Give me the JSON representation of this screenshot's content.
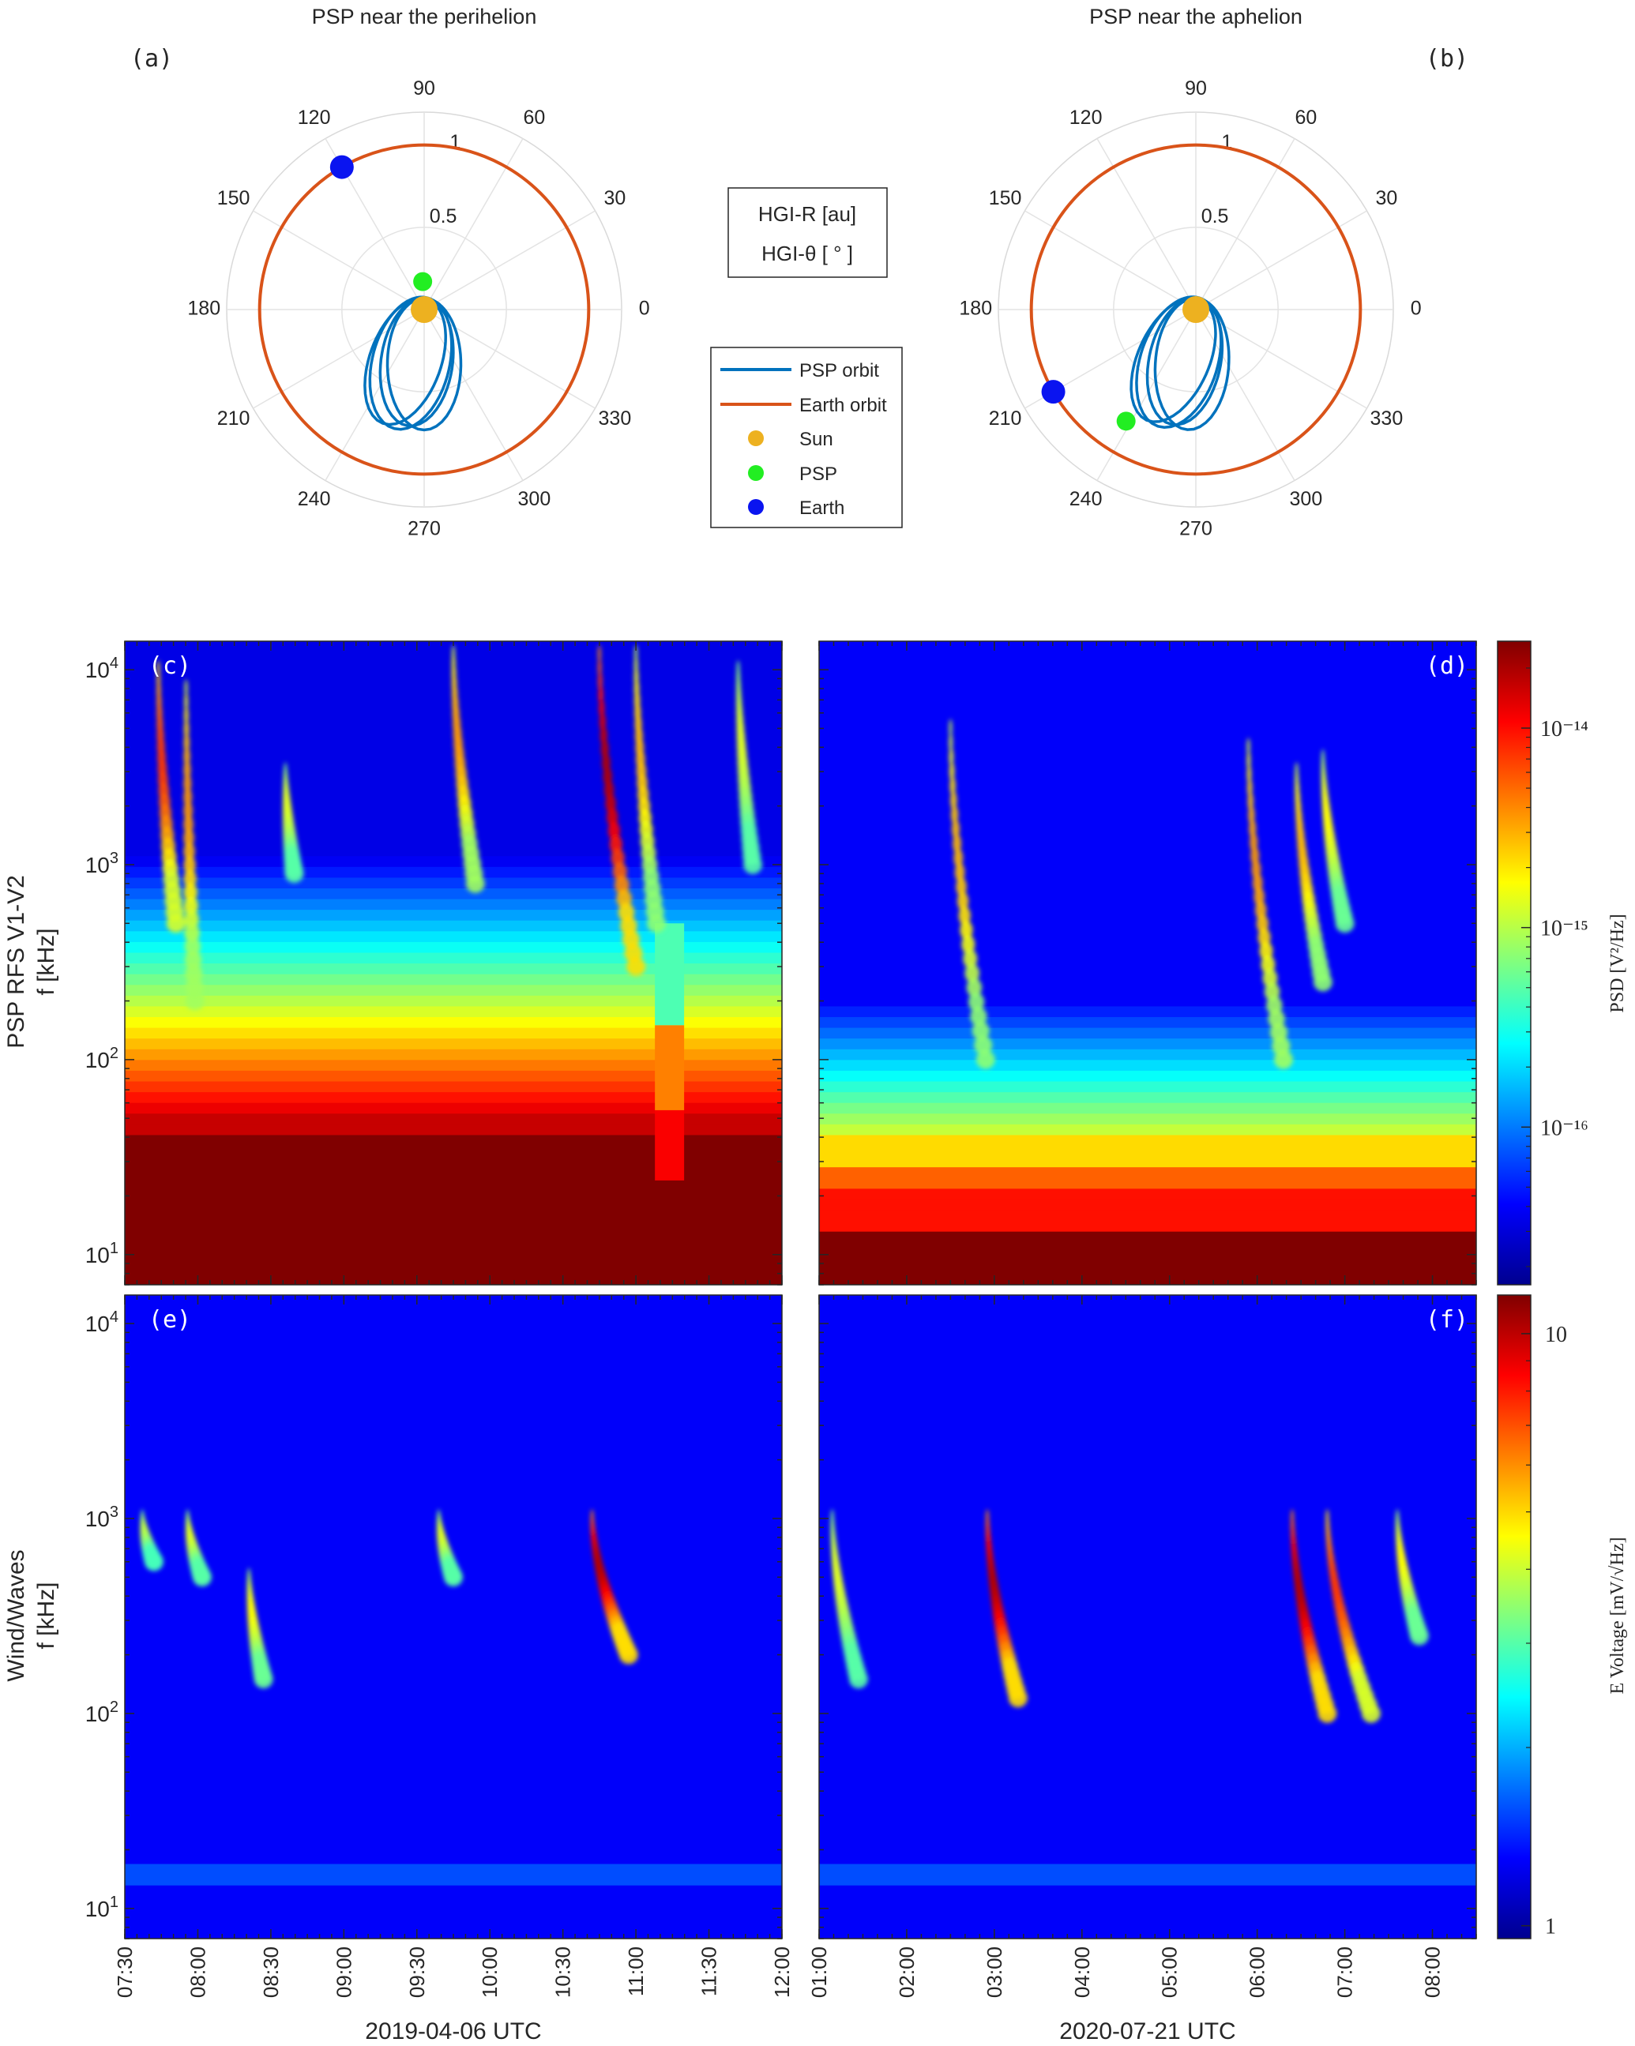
{
  "chart_data": [
    {
      "panel": "(a)",
      "type": "polar",
      "title": "PSP near the perihelion",
      "theta_ticks": [
        "0",
        "30",
        "60",
        "90",
        "120",
        "150",
        "180",
        "210",
        "240",
        "270",
        "300",
        "330"
      ],
      "r_ticks": [
        "0.5",
        "1"
      ],
      "rlim": [
        0,
        1.2
      ],
      "bodies": [
        {
          "name": "Sun",
          "r": 0.0,
          "theta_deg": 0
        },
        {
          "name": "PSP",
          "r": 0.17,
          "theta_deg": 93
        },
        {
          "name": "Earth",
          "r": 1.0,
          "theta_deg": 120
        }
      ]
    },
    {
      "panel": "(b)",
      "type": "polar",
      "title": "PSP near the aphelion",
      "theta_ticks": [
        "0",
        "30",
        "60",
        "90",
        "120",
        "150",
        "180",
        "210",
        "240",
        "270",
        "300",
        "330"
      ],
      "r_ticks": [
        "0.5",
        "1"
      ],
      "rlim": [
        0,
        1.2
      ],
      "bodies": [
        {
          "name": "Sun",
          "r": 0.0,
          "theta_deg": 0
        },
        {
          "name": "PSP",
          "r": 0.8,
          "theta_deg": 238
        },
        {
          "name": "Earth",
          "r": 1.0,
          "theta_deg": 210
        }
      ]
    },
    {
      "panel": "(c)",
      "type": "heatmap",
      "ylabel": [
        "PSP RFS V1-V2",
        "f [kHz]"
      ],
      "yscale": "log",
      "ylim": [
        7,
        14000
      ],
      "y_ticks": [
        10,
        100,
        1000,
        10000
      ],
      "xlim_hours": [
        7.5,
        12.0
      ],
      "bursts": [
        {
          "t_hours": 7.73,
          "start_khz": 10000,
          "end_khz": 500,
          "drift_hours": 0.12,
          "intensity": 0.8
        },
        {
          "t_hours": 7.92,
          "start_khz": 8000,
          "end_khz": 200,
          "drift_hours": 0.06,
          "intensity": 0.65
        },
        {
          "t_hours": 8.6,
          "start_khz": 3000,
          "end_khz": 900,
          "drift_hours": 0.06,
          "intensity": 0.45
        },
        {
          "t_hours": 9.75,
          "start_khz": 12000,
          "end_khz": 800,
          "drift_hours": 0.15,
          "intensity": 0.65
        },
        {
          "t_hours": 10.75,
          "start_khz": 12000,
          "end_khz": 300,
          "drift_hours": 0.25,
          "intensity": 1.0
        },
        {
          "t_hours": 11.0,
          "start_khz": 12000,
          "end_khz": 500,
          "drift_hours": 0.14,
          "intensity": 0.6
        },
        {
          "t_hours": 11.7,
          "start_khz": 10000,
          "end_khz": 1000,
          "drift_hours": 0.1,
          "intensity": 0.45
        }
      ]
    },
    {
      "panel": "(d)",
      "type": "heatmap",
      "yscale": "log",
      "ylim": [
        7,
        14000
      ],
      "y_ticks": [
        10,
        100,
        1000,
        10000
      ],
      "xlim_hours": [
        1.0,
        8.5
      ],
      "colorbar": {
        "label": "PSD [V²/Hz]",
        "scale": "log",
        "tick_labels": [
          "10⁻¹⁶",
          "10⁻¹⁵",
          "10⁻¹⁴"
        ]
      },
      "bursts": [
        {
          "t_hours": 2.5,
          "start_khz": 5000,
          "end_khz": 100,
          "drift_hours": 0.4,
          "intensity": 0.6
        },
        {
          "t_hours": 5.9,
          "start_khz": 4000,
          "end_khz": 100,
          "drift_hours": 0.4,
          "intensity": 0.65
        },
        {
          "t_hours": 6.45,
          "start_khz": 3000,
          "end_khz": 250,
          "drift_hours": 0.3,
          "intensity": 0.6
        },
        {
          "t_hours": 6.75,
          "start_khz": 3500,
          "end_khz": 500,
          "drift_hours": 0.25,
          "intensity": 0.5
        }
      ]
    },
    {
      "panel": "(e)",
      "type": "heatmap",
      "ylabel": [
        "Wind/Waves",
        "f [kHz]"
      ],
      "xlabel": "2019-04-06 UTC",
      "yscale": "log",
      "ylim": [
        7,
        14000
      ],
      "y_ticks": [
        10,
        100,
        1000,
        10000
      ],
      "xlim_hours": [
        7.5,
        12.0
      ],
      "x_tick_labels": [
        "07:30",
        "08:00",
        "08:30",
        "09:00",
        "09:30",
        "10:00",
        "10:30",
        "11:00",
        "11:30",
        "12:00"
      ],
      "bursts": [
        {
          "t_hours": 7.62,
          "start_khz": 1000,
          "end_khz": 600,
          "drift_hours": 0.08,
          "intensity": 0.4
        },
        {
          "t_hours": 7.93,
          "start_khz": 1000,
          "end_khz": 500,
          "drift_hours": 0.1,
          "intensity": 0.45
        },
        {
          "t_hours": 8.35,
          "start_khz": 500,
          "end_khz": 150,
          "drift_hours": 0.1,
          "intensity": 0.5
        },
        {
          "t_hours": 9.65,
          "start_khz": 1000,
          "end_khz": 500,
          "drift_hours": 0.1,
          "intensity": 0.45
        },
        {
          "t_hours": 10.7,
          "start_khz": 1000,
          "end_khz": 200,
          "drift_hours": 0.25,
          "intensity": 1.0
        }
      ]
    },
    {
      "panel": "(f)",
      "type": "heatmap",
      "xlabel": "2020-07-21 UTC",
      "yscale": "log",
      "ylim": [
        7,
        14000
      ],
      "y_ticks": [
        10,
        100,
        1000,
        10000
      ],
      "xlim_hours": [
        1.0,
        8.5
      ],
      "x_tick_labels": [
        "01:00",
        "02:00",
        "03:00",
        "04:00",
        "05:00",
        "06:00",
        "07:00",
        "08:00"
      ],
      "colorbar": {
        "label": "E Voltage [mV/√Hz]",
        "scale": "log",
        "tick_labels": [
          "1",
          "10"
        ]
      },
      "bursts": [
        {
          "t_hours": 1.15,
          "start_khz": 1000,
          "end_khz": 150,
          "drift_hours": 0.3,
          "intensity": 0.45
        },
        {
          "t_hours": 2.92,
          "start_khz": 1000,
          "end_khz": 120,
          "drift_hours": 0.35,
          "intensity": 1.0
        },
        {
          "t_hours": 6.4,
          "start_khz": 1000,
          "end_khz": 100,
          "drift_hours": 0.4,
          "intensity": 1.0
        },
        {
          "t_hours": 6.8,
          "start_khz": 1000,
          "end_khz": 100,
          "drift_hours": 0.5,
          "intensity": 0.8
        },
        {
          "t_hours": 7.6,
          "start_khz": 1000,
          "end_khz": 250,
          "drift_hours": 0.25,
          "intensity": 0.5
        }
      ]
    }
  ],
  "legend": {
    "coords_box": [
      "HGI-R [au]",
      "HGI-θ [ ° ]"
    ],
    "items": [
      {
        "label": "PSP orbit",
        "kind": "line",
        "color": "#0072BD"
      },
      {
        "label": "Earth orbit",
        "kind": "line",
        "color": "#D95319"
      },
      {
        "label": "Sun",
        "kind": "dot",
        "color": "#EDB120"
      },
      {
        "label": "PSP",
        "kind": "dot",
        "color": "#22EE22"
      },
      {
        "label": "Earth",
        "kind": "dot",
        "color": "#0A14F0"
      }
    ]
  },
  "colors": {
    "psp_orbit": "#0072BD",
    "earth_orbit": "#D95319",
    "sun": "#EDB120",
    "psp": "#22EE22",
    "earth": "#0A14F0"
  }
}
